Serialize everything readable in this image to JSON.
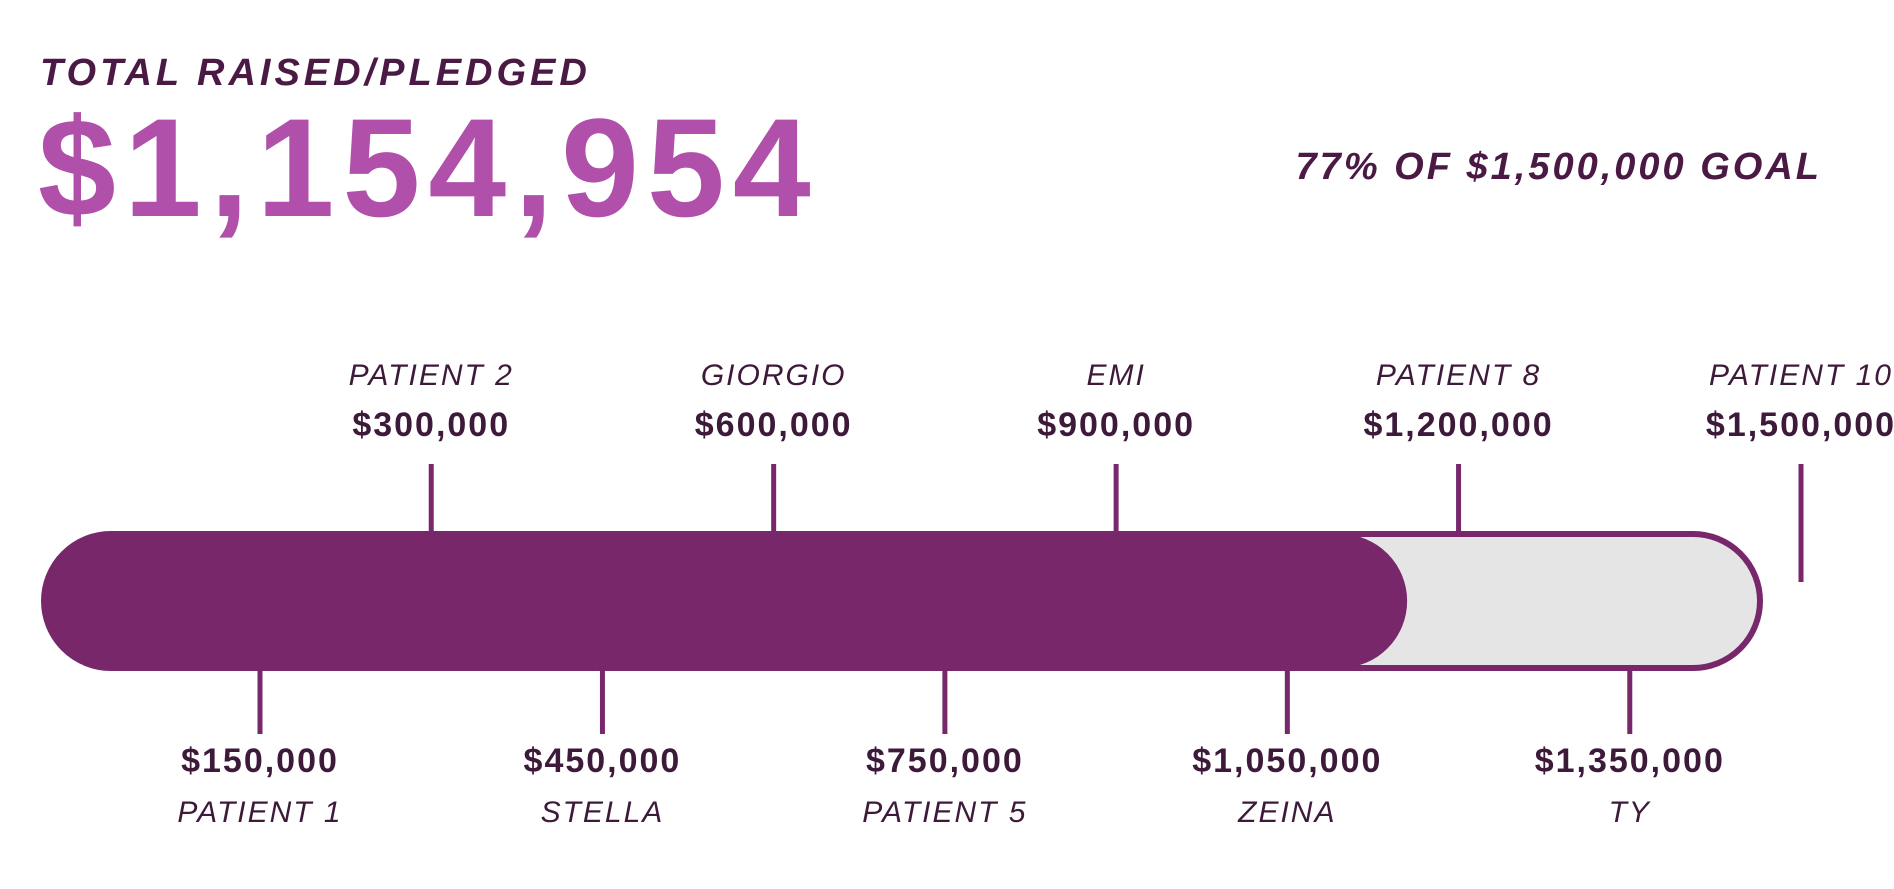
{
  "header": {
    "label": "TOTAL RAISED/PLEDGED",
    "total": "$1,154,954",
    "goal_text": "77% OF $1,500,000 GOAL"
  },
  "colors": {
    "fill": "#77276a",
    "track": "#e5e5e5",
    "total_text": "#b050aa",
    "dark_text": "#3e1a3a"
  },
  "chart_data": {
    "type": "bar",
    "title": "",
    "raised": 1154954,
    "goal": 1500000,
    "percent": 77,
    "xlim": [
      0,
      1500000
    ],
    "milestones": [
      {
        "value": 150000,
        "amount": "$150,000",
        "name": "PATIENT 1",
        "side": "below"
      },
      {
        "value": 300000,
        "amount": "$300,000",
        "name": "PATIENT 2",
        "side": "above"
      },
      {
        "value": 450000,
        "amount": "$450,000",
        "name": "STELLA",
        "side": "below"
      },
      {
        "value": 600000,
        "amount": "$600,000",
        "name": "GIORGIO",
        "side": "above"
      },
      {
        "value": 750000,
        "amount": "$750,000",
        "name": "PATIENT 5",
        "side": "below"
      },
      {
        "value": 900000,
        "amount": "$900,000",
        "name": "EMI",
        "side": "above"
      },
      {
        "value": 1050000,
        "amount": "$1,050,000",
        "name": "ZEINA",
        "side": "below"
      },
      {
        "value": 1200000,
        "amount": "$1,200,000",
        "name": "PATIENT 8",
        "side": "above"
      },
      {
        "value": 1350000,
        "amount": "$1,350,000",
        "name": "TY",
        "side": "below"
      },
      {
        "value": 1500000,
        "amount": "$1,500,000",
        "name": "PATIENT 10",
        "side": "above"
      }
    ]
  }
}
